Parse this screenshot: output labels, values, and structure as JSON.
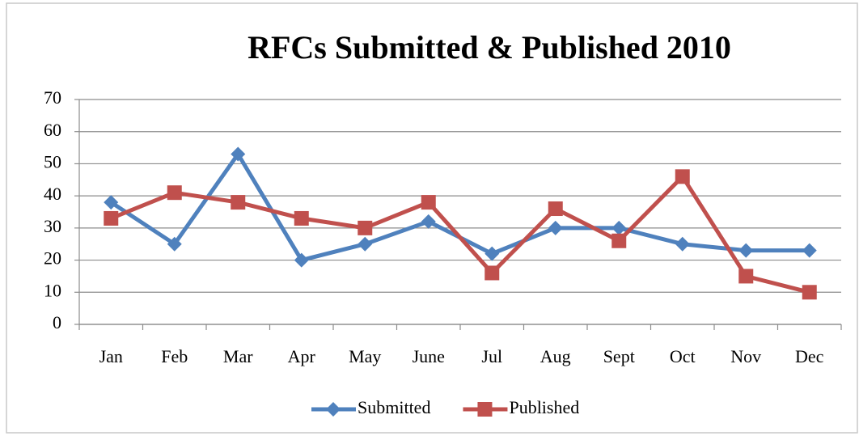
{
  "chart_data": {
    "type": "line",
    "title": "RFCs Submitted & Published 2010",
    "categories": [
      "Jan",
      "Feb",
      "Mar",
      "Apr",
      "May",
      "June",
      "Jul",
      "Aug",
      "Sept",
      "Oct",
      "Nov",
      "Dec"
    ],
    "series": [
      {
        "name": "Submitted",
        "color": "#4f81bd",
        "marker": "diamond",
        "values": [
          38,
          25,
          53,
          20,
          25,
          32,
          22,
          30,
          30,
          25,
          23,
          23
        ]
      },
      {
        "name": "Published",
        "color": "#c0504d",
        "marker": "square",
        "values": [
          33,
          41,
          38,
          33,
          30,
          38,
          16,
          36,
          26,
          46,
          15,
          10
        ]
      }
    ],
    "ylim": [
      0,
      70
    ],
    "yticks": [
      0,
      10,
      20,
      30,
      40,
      50,
      60,
      70
    ],
    "grid": true,
    "legend": "bottom"
  }
}
